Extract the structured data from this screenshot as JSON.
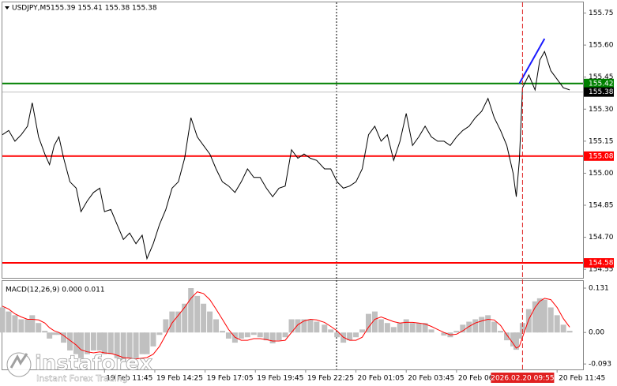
{
  "chart_data": [
    {
      "type": "line",
      "title": "USDJPY,M5",
      "subtitle": "155.39 155.41 155.38 155.38",
      "xlim": [
        0,
        369
      ],
      "ylim": [
        154.51,
        155.8
      ],
      "yticks": [
        155.75,
        {
          "value": 155.6,
          "label": "155.60"
        },
        155.45,
        {
          "value": 155.3,
          "label": "155.30"
        },
        155.15,
        {
          "value": 155,
          "label": "155.00"
        },
        154.85,
        {
          "value": 154.7,
          "label": "154.70"
        },
        154.55
      ],
      "x": [
        0,
        4,
        8,
        12,
        16,
        19,
        23,
        27,
        30,
        33,
        36,
        39,
        43,
        47,
        50,
        54,
        58,
        62,
        65,
        69,
        73,
        77,
        81,
        85,
        89,
        92,
        96,
        100,
        104,
        108,
        112,
        116,
        120,
        124,
        128,
        132,
        136,
        140,
        144,
        148,
        152,
        156,
        160,
        164,
        168,
        172,
        176,
        180,
        184,
        188,
        192,
        196,
        200,
        205,
        209,
        213,
        217,
        221,
        225,
        229,
        233,
        237,
        241,
        245,
        249,
        253,
        257,
        261,
        265,
        269,
        273,
        277,
        281,
        285,
        289,
        293,
        297,
        301,
        305,
        309,
        313,
        317,
        321,
        325,
        327,
        329,
        331,
        335,
        339,
        342,
        345,
        349,
        353,
        357,
        361
      ],
      "series": [
        {
          "color": "#000000",
          "values": [
            155.18,
            155.2,
            155.15,
            155.18,
            155.22,
            155.33,
            155.17,
            155.09,
            155.04,
            155.13,
            155.17,
            155.07,
            154.96,
            154.93,
            154.82,
            154.87,
            154.91,
            154.93,
            154.82,
            154.83,
            154.76,
            154.69,
            154.72,
            154.67,
            154.71,
            154.6,
            154.67,
            154.76,
            154.83,
            154.93,
            154.96,
            155.07,
            155.26,
            155.17,
            155.13,
            155.09,
            155.02,
            154.96,
            154.94,
            154.91,
            154.96,
            155.02,
            154.98,
            154.98,
            154.93,
            154.89,
            154.93,
            154.94,
            155.11,
            155.07,
            155.09,
            155.07,
            155.06,
            155.02,
            155.02,
            154.96,
            154.93,
            154.94,
            154.96,
            155.02,
            155.18,
            155.22,
            155.15,
            155.18,
            155.06,
            155.15,
            155.28,
            155.13,
            155.17,
            155.22,
            155.17,
            155.15,
            155.15,
            155.13,
            155.17,
            155.2,
            155.22,
            155.26,
            155.29,
            155.35,
            155.26,
            155.2,
            155.13,
            155.0,
            154.89,
            155.06,
            155.4,
            155.46,
            155.39,
            155.53,
            155.57,
            155.48,
            155.44,
            155.4,
            155.39
          ]
        }
      ],
      "trendline": {
        "color": "#1a1aff",
        "x": [
          329,
          345
        ],
        "values": [
          155.42,
          155.63
        ]
      },
      "levels": [
        {
          "value": 155.42,
          "color": "#008000"
        },
        {
          "value": 155.08,
          "color": "#ff0000"
        },
        {
          "value": 154.58,
          "color": "#ff0000"
        },
        {
          "value": 155.38,
          "color": "#c0c0c0",
          "label_color": "#000000"
        }
      ]
    },
    {
      "type": "macd",
      "title": "MACD(12,26,9) 0.000 0.011",
      "xlim": [
        0,
        369
      ],
      "ylim": [
        -0.109,
        0.152
      ],
      "yticks": [
        0.131,
        {
          "value": 0,
          "label": "0.00"
        },
        -0.093
      ],
      "xticks": [
        {
          "value": 65,
          "label": "19 Feb 11:45"
        },
        {
          "value": 97,
          "label": "19 Feb 14:25"
        },
        {
          "value": 129,
          "label": "19 Feb 17:05"
        },
        {
          "value": 161,
          "label": "19 Feb 19:45"
        },
        {
          "value": 193,
          "label": "19 Feb 22:25"
        },
        {
          "value": 225,
          "label": "20 Feb 01:05"
        },
        {
          "value": 257,
          "label": "20 Feb 03:45"
        },
        {
          "value": 289,
          "label": "20 Feb 06:25"
        },
        {
          "value": 353,
          "label": "20 Feb 11:45"
        }
      ],
      "cursor_x": {
        "value": 331,
        "label": "2026.02.20 09:55",
        "color": "#e02020"
      },
      "x": [
        0,
        4,
        8,
        12,
        16,
        19,
        23,
        27,
        30,
        33,
        36,
        39,
        43,
        47,
        50,
        54,
        58,
        62,
        65,
        69,
        73,
        77,
        81,
        85,
        89,
        92,
        96,
        100,
        104,
        108,
        112,
        116,
        120,
        124,
        128,
        132,
        136,
        140,
        144,
        148,
        152,
        156,
        160,
        164,
        168,
        172,
        176,
        180,
        184,
        188,
        192,
        196,
        200,
        205,
        209,
        213,
        217,
        221,
        225,
        229,
        233,
        237,
        241,
        245,
        249,
        253,
        257,
        261,
        265,
        269,
        273,
        277,
        281,
        285,
        289,
        293,
        297,
        301,
        305,
        309,
        313,
        317,
        321,
        325,
        327,
        329,
        331,
        335,
        339,
        342,
        345,
        349,
        353,
        357,
        361
      ],
      "histogram": {
        "color": "#c0c0c0",
        "values": [
          0.074,
          0.062,
          0.051,
          0.039,
          0.039,
          0.051,
          0.028,
          0.005,
          -0.018,
          -0.007,
          -0.007,
          -0.03,
          -0.053,
          -0.064,
          -0.076,
          -0.064,
          -0.053,
          -0.053,
          -0.064,
          -0.064,
          -0.076,
          -0.087,
          -0.076,
          -0.076,
          -0.064,
          -0.064,
          -0.041,
          -0.007,
          0.039,
          0.062,
          0.062,
          0.085,
          0.131,
          0.108,
          0.085,
          0.062,
          0.039,
          0.005,
          -0.018,
          -0.03,
          -0.018,
          -0.014,
          -0.007,
          -0.014,
          -0.023,
          -0.032,
          -0.023,
          -0.014,
          0.039,
          0.039,
          0.039,
          0.039,
          0.032,
          0.023,
          0.009,
          -0.014,
          -0.03,
          -0.023,
          -0.014,
          0.009,
          0.055,
          0.062,
          0.039,
          0.028,
          0.016,
          0.028,
          0.039,
          0.028,
          0.028,
          0.028,
          0.009,
          0,
          -0.009,
          -0.014,
          0.005,
          0.023,
          0.032,
          0.039,
          0.046,
          0.051,
          0.032,
          0.005,
          -0.023,
          -0.041,
          -0.051,
          -0.018,
          0.028,
          0.069,
          0.092,
          0.101,
          0.097,
          0.074,
          0.051,
          0.023,
          0.005
        ]
      },
      "signal": {
        "color": "#ff0000",
        "values": [
          0.078,
          0.069,
          0.055,
          0.046,
          0.039,
          0.039,
          0.037,
          0.028,
          0.014,
          0.005,
          0,
          -0.009,
          -0.023,
          -0.037,
          -0.051,
          -0.057,
          -0.06,
          -0.057,
          -0.06,
          -0.062,
          -0.067,
          -0.074,
          -0.076,
          -0.078,
          -0.076,
          -0.074,
          -0.064,
          -0.041,
          -0.007,
          0.028,
          0.051,
          0.074,
          0.101,
          0.12,
          0.115,
          0.097,
          0.069,
          0.039,
          0.009,
          -0.014,
          -0.023,
          -0.023,
          -0.018,
          -0.018,
          -0.021,
          -0.025,
          -0.025,
          -0.023,
          0,
          0.023,
          0.034,
          0.039,
          0.037,
          0.03,
          0.018,
          0.005,
          -0.014,
          -0.023,
          -0.023,
          -0.014,
          0.016,
          0.039,
          0.046,
          0.039,
          0.032,
          0.028,
          0.03,
          0.03,
          0.028,
          0.025,
          0.018,
          0.009,
          0,
          -0.007,
          -0.005,
          0.005,
          0.018,
          0.028,
          0.034,
          0.039,
          0.037,
          0.021,
          -0.007,
          -0.032,
          -0.046,
          -0.041,
          -0.014,
          0.039,
          0.074,
          0.092,
          0.101,
          0.097,
          0.074,
          0.041,
          0.016
        ]
      }
    },
    {
      "type": "watermark",
      "brand": "instaforex",
      "slogan": "Instant Forex Trading"
    }
  ]
}
